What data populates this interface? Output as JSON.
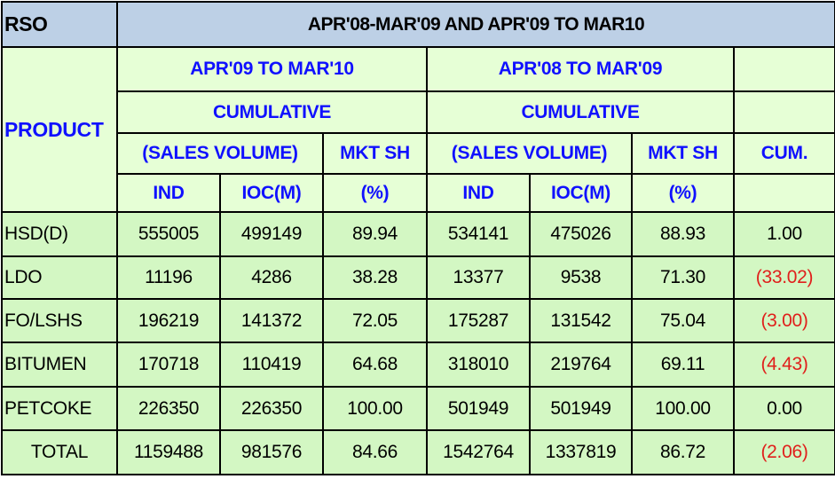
{
  "title": {
    "rso": "RSO",
    "period": "APR'08-MAR'09 AND APR'09 TO MAR10"
  },
  "headers": {
    "product": "PRODUCT",
    "period_current": "APR'09 TO MAR'10",
    "period_previous": "APR'08 TO MAR'09",
    "cumulative": "CUMULATIVE",
    "sales_volume": "(SALES VOLUME)",
    "mkt_sh": "MKT SH",
    "cum": "CUM.",
    "ind": "IND",
    "ioc": "IOC(M)",
    "pct": "(%)"
  },
  "rows": [
    {
      "product": "HSD(D)",
      "ind_cur": "555005",
      "ioc_cur": "499149",
      "mkt_cur": "89.94",
      "ind_prev": "534141",
      "ioc_prev": "475026",
      "mkt_prev": "88.93",
      "cum": "1.00"
    },
    {
      "product": "LDO",
      "ind_cur": "11196",
      "ioc_cur": "4286",
      "mkt_cur": "38.28",
      "ind_prev": "13377",
      "ioc_prev": "9538",
      "mkt_prev": "71.30",
      "cum": "(33.02)"
    },
    {
      "product": "FO/LSHS",
      "ind_cur": "196219",
      "ioc_cur": "141372",
      "mkt_cur": "72.05",
      "ind_prev": "175287",
      "ioc_prev": "131542",
      "mkt_prev": "75.04",
      "cum": "(3.00)"
    },
    {
      "product": "BITUMEN",
      "ind_cur": "170718",
      "ioc_cur": "110419",
      "mkt_cur": "64.68",
      "ind_prev": "318010",
      "ioc_prev": "219764",
      "mkt_prev": "69.11",
      "cum": "(4.43)"
    },
    {
      "product": "PETCOKE",
      "ind_cur": "226350",
      "ioc_cur": "226350",
      "mkt_cur": "100.00",
      "ind_prev": "501949",
      "ioc_prev": "501949",
      "mkt_prev": "100.00",
      "cum": "0.00"
    }
  ],
  "total": {
    "product": "TOTAL",
    "ind_cur": "1159488",
    "ioc_cur": "981576",
    "mkt_cur": "84.66",
    "ind_prev": "1542764",
    "ioc_prev": "1337819",
    "mkt_prev": "86.72",
    "cum": "(2.06)"
  },
  "colors": {
    "title_bg": "#bdd0e6",
    "header_bg": "#e6ffd6",
    "header_text": "#1010ff",
    "data_bg": "#d3f7c3",
    "negative_text": "#e0201c"
  }
}
